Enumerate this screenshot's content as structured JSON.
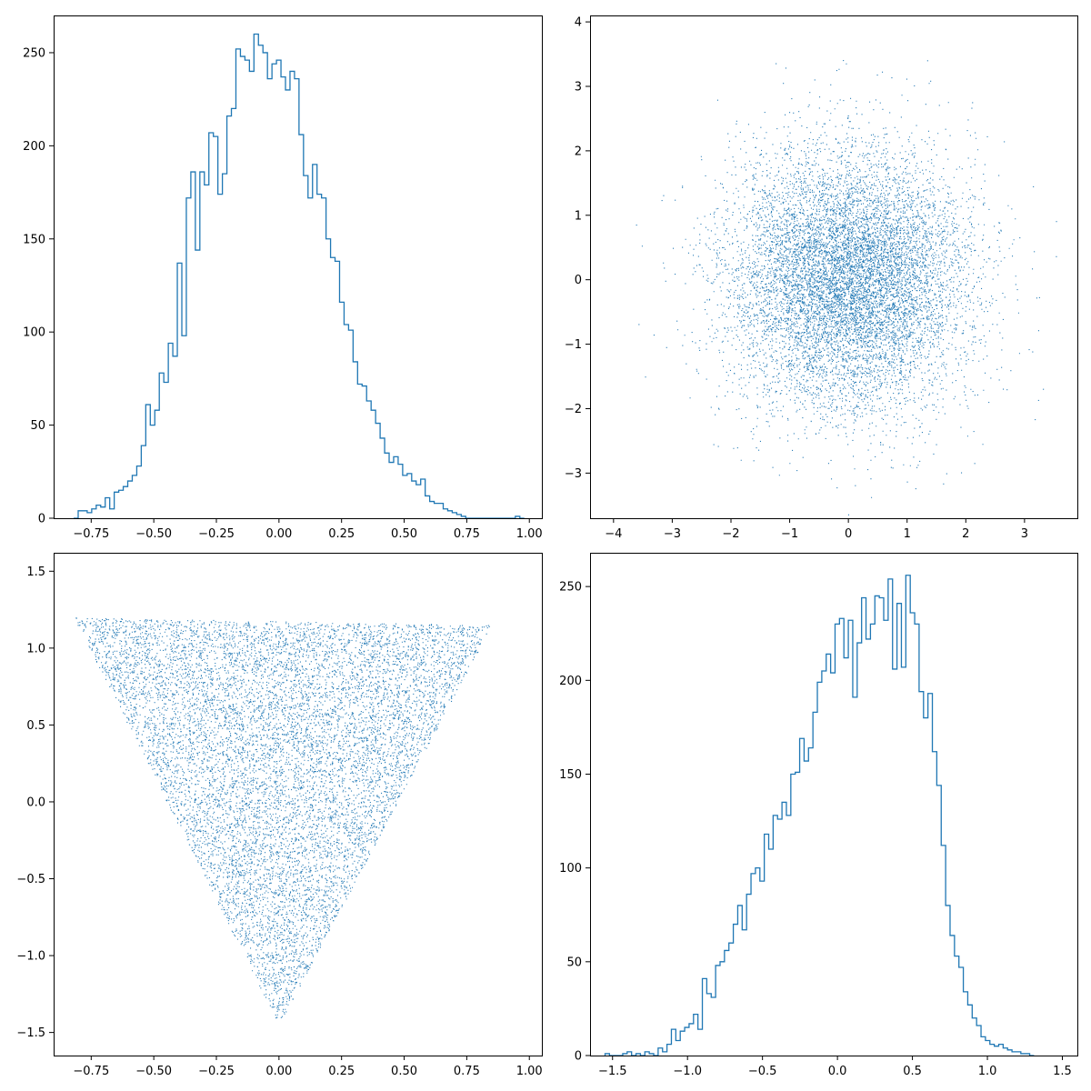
{
  "figure": {
    "background": "#ffffff",
    "series_color": "#1f77b4"
  },
  "chart_data": [
    {
      "id": "top-left",
      "type": "histogram",
      "histtype": "step",
      "xlim": [
        -0.9,
        1.05
      ],
      "ylim": [
        0,
        270
      ],
      "xticks": [
        -0.75,
        -0.5,
        -0.25,
        0.0,
        0.25,
        0.5,
        0.75,
        1.0
      ],
      "xtick_labels": [
        "−0.75",
        "−0.50",
        "−0.25",
        "0.00",
        "0.25",
        "0.50",
        "0.75",
        "1.00"
      ],
      "yticks": [
        0,
        50,
        100,
        150,
        200,
        250
      ],
      "ytick_labels": [
        "0",
        "50",
        "100",
        "150",
        "200",
        "250"
      ],
      "bins": {
        "start": -0.82,
        "width": 0.018,
        "counts": [
          0,
          4,
          4,
          3,
          5,
          7,
          6,
          11,
          5,
          14,
          15,
          17,
          20,
          23,
          28,
          39,
          61,
          50,
          58,
          78,
          73,
          94,
          87,
          137,
          98,
          172,
          186,
          144,
          186,
          179,
          207,
          205,
          174,
          185,
          216,
          220,
          252,
          248,
          246,
          240,
          260,
          254,
          250,
          236,
          244,
          246,
          237,
          230,
          240,
          236,
          206,
          184,
          172,
          190,
          174,
          172,
          150,
          140,
          138,
          116,
          104,
          101,
          84,
          72,
          71,
          63,
          58,
          51,
          43,
          35,
          30,
          33,
          29,
          23,
          24,
          20,
          18,
          21,
          12,
          9,
          8,
          8,
          5,
          4,
          3,
          2,
          1,
          0,
          0,
          0,
          0,
          0,
          0,
          0,
          0,
          0,
          0,
          0,
          1,
          0
        ]
      }
    },
    {
      "id": "top-right",
      "type": "scatter",
      "marker": "pixel",
      "xlim": [
        -4.4,
        3.9
      ],
      "ylim": [
        -3.7,
        4.1
      ],
      "xticks": [
        -4,
        -3,
        -2,
        -1,
        0,
        1,
        2,
        3
      ],
      "xtick_labels": [
        "−4",
        "−3",
        "−2",
        "−1",
        "0",
        "1",
        "2",
        "3"
      ],
      "yticks": [
        -3,
        -2,
        -1,
        0,
        1,
        2,
        3,
        4
      ],
      "ytick_labels": [
        "−3",
        "−2",
        "−1",
        "0",
        "1",
        "2",
        "3",
        "4"
      ],
      "distribution": {
        "kind": "gaussian-2d",
        "n": 10000,
        "mean": [
          0,
          0
        ],
        "std": [
          1,
          1
        ],
        "seed": 1
      }
    },
    {
      "id": "bottom-left",
      "type": "scatter",
      "marker": "pixel",
      "xlim": [
        -0.9,
        1.05
      ],
      "ylim": [
        -1.65,
        1.62
      ],
      "xticks": [
        -0.75,
        -0.5,
        -0.25,
        0.0,
        0.25,
        0.5,
        0.75,
        1.0
      ],
      "xtick_labels": [
        "−0.75",
        "−0.50",
        "−0.25",
        "0.00",
        "0.25",
        "0.50",
        "0.75",
        "1.00"
      ],
      "yticks": [
        -1.5,
        -1.0,
        -0.5,
        0.0,
        0.5,
        1.0,
        1.5
      ],
      "ytick_labels": [
        "−1.5",
        "−1.0",
        "−0.5",
        "0.0",
        "0.5",
        "1.0",
        "1.5"
      ],
      "distribution": {
        "kind": "triangle",
        "n": 10000,
        "vertices": [
          [
            -0.82,
            1.2
          ],
          [
            0.85,
            1.15
          ],
          [
            0.0,
            -1.45
          ]
        ],
        "seed": 2
      }
    },
    {
      "id": "bottom-right",
      "type": "histogram",
      "histtype": "step",
      "xlim": [
        -1.65,
        1.6
      ],
      "ylim": [
        0,
        268
      ],
      "xticks": [
        -1.5,
        -1.0,
        -0.5,
        0.0,
        0.5,
        1.0,
        1.5
      ],
      "xtick_labels": [
        "−1.5",
        "−1.0",
        "−0.5",
        "0.0",
        "0.5",
        "1.0",
        "1.5"
      ],
      "yticks": [
        0,
        50,
        100,
        150,
        200,
        250
      ],
      "ytick_labels": [
        "0",
        "50",
        "100",
        "150",
        "200",
        "250"
      ],
      "bins": {
        "start": -1.55,
        "width": 0.0295,
        "counts": [
          1,
          0,
          0,
          0,
          1,
          2,
          0,
          1,
          0,
          2,
          1,
          0,
          4,
          2,
          6,
          14,
          8,
          13,
          15,
          17,
          22,
          14,
          41,
          33,
          31,
          48,
          50,
          56,
          60,
          70,
          80,
          67,
          86,
          97,
          100,
          93,
          118,
          110,
          128,
          126,
          135,
          128,
          150,
          151,
          169,
          157,
          164,
          183,
          199,
          205,
          214,
          204,
          230,
          233,
          212,
          232,
          191,
          220,
          244,
          222,
          230,
          245,
          244,
          232,
          254,
          206,
          241,
          207,
          256,
          236,
          230,
          194,
          180,
          193,
          162,
          144,
          112,
          80,
          64,
          53,
          47,
          34,
          27,
          20,
          16,
          10,
          8,
          6,
          5,
          6,
          4,
          3,
          2,
          2,
          1,
          1,
          0
        ]
      }
    }
  ]
}
